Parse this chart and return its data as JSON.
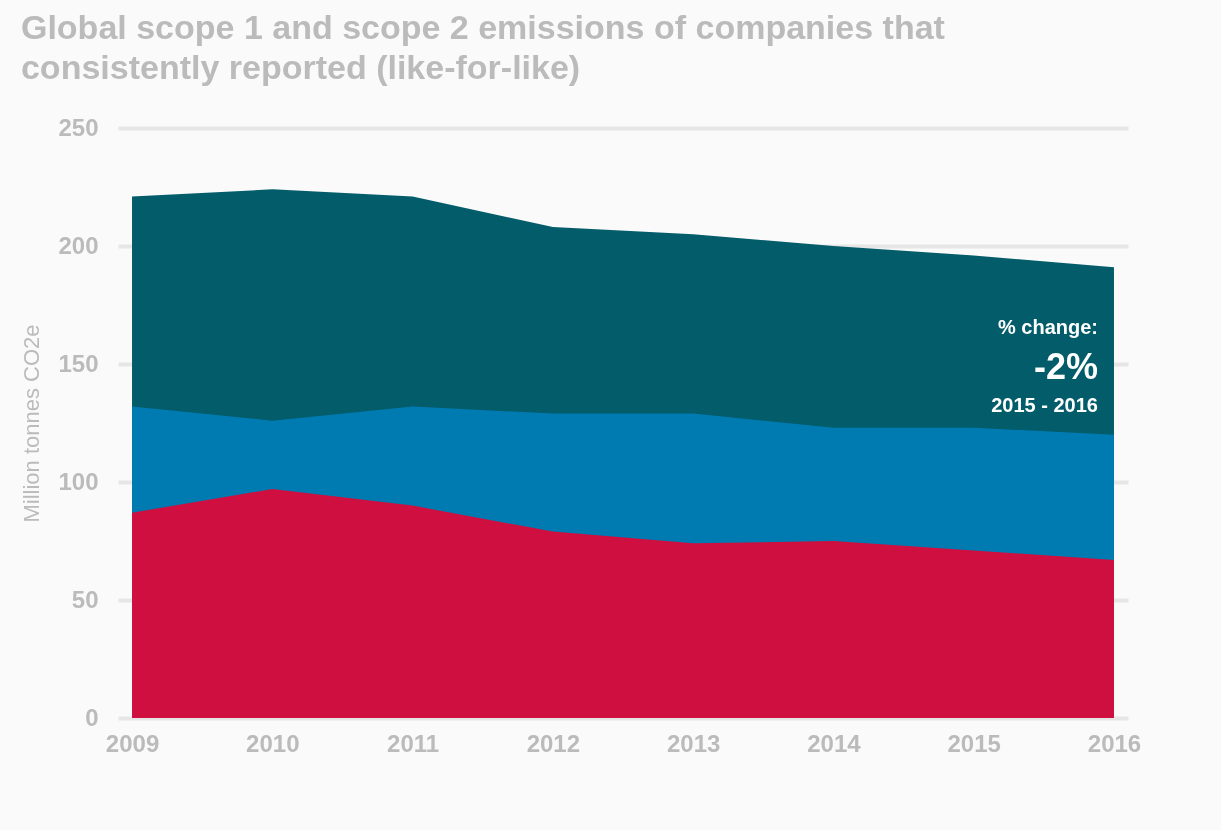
{
  "chart_data": {
    "type": "area",
    "title": "Global scope 1 and scope 2 emissions of companies that consistently reported (like-for-like)",
    "ylabel": "Million tonnes CO2e",
    "categories": [
      "2009",
      "2010",
      "2011",
      "2012",
      "2013",
      "2014",
      "2015",
      "2016"
    ],
    "series": [
      {
        "color": "#025c6a",
        "values": [
          221,
          224,
          221,
          208,
          205,
          200,
          196,
          191
        ]
      },
      {
        "color": "#007bb2",
        "values": [
          132,
          126,
          132,
          129,
          129,
          123,
          123,
          120
        ]
      },
      {
        "color": "#cf0f3f",
        "values": [
          87,
          97,
          90,
          79,
          74,
          75,
          71,
          67
        ]
      }
    ],
    "ylim": [
      0,
      250
    ],
    "yticks": [
      0,
      50,
      100,
      150,
      200,
      250
    ],
    "grid": "y",
    "annotations": [
      "% change:",
      "-2%",
      "2015 - 2016"
    ]
  }
}
